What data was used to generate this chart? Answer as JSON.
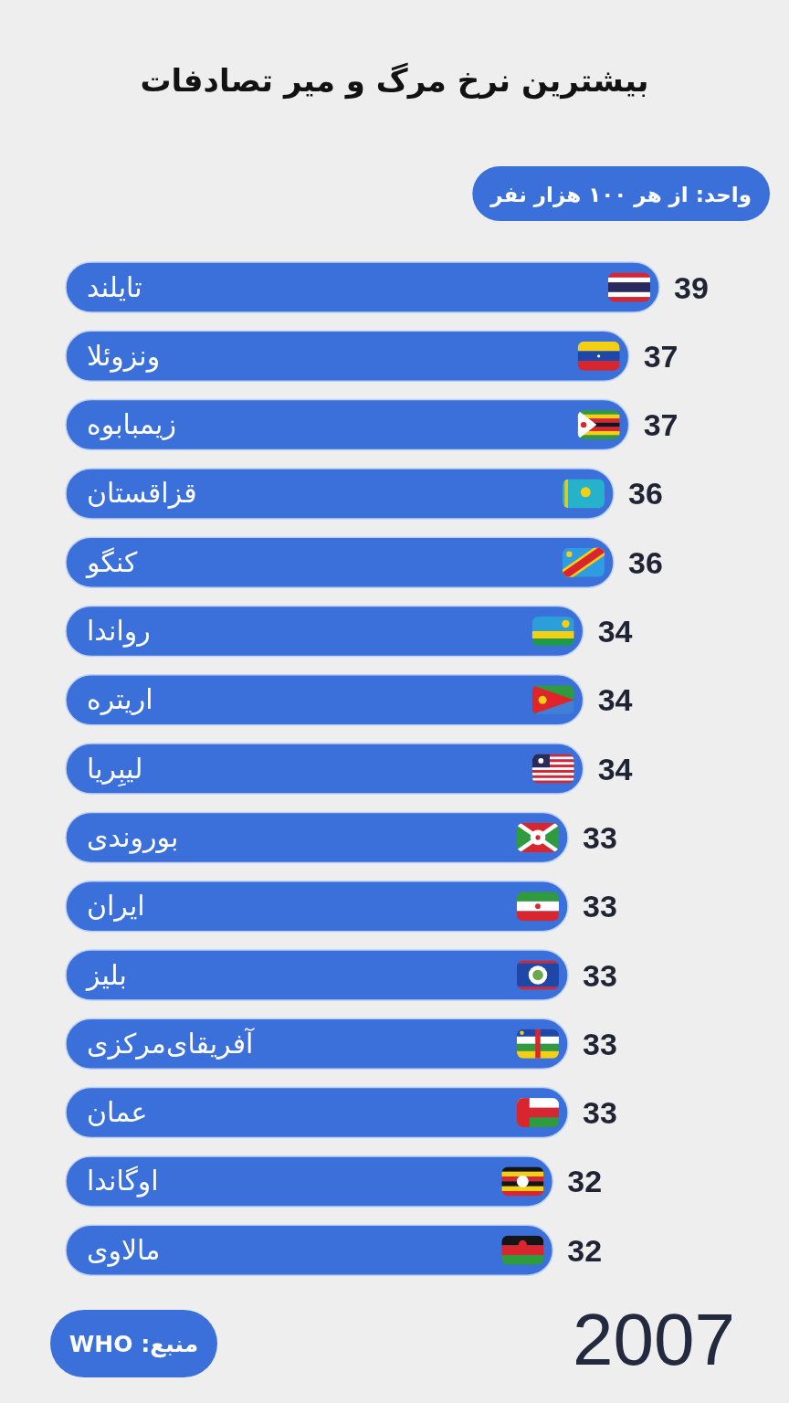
{
  "chart_data": {
    "type": "bar",
    "orientation": "horizontal",
    "title": "بیشترین نرخ مرگ و میر تصادفات",
    "subtitle": "واحد: از هر ۱۰۰ هزار نفر",
    "categories": [
      "تایلند",
      "ونزوئلا",
      "زیمبابوه",
      "قزاقستان",
      "کنگو",
      "رواندا",
      "اریتره",
      "لیبِریا",
      "بوروندی",
      "ایران",
      "بلیز",
      "آفریقای‌مرکزی",
      "عمان",
      "اوگاندا",
      "مالاوی"
    ],
    "values": [
      39,
      37,
      37,
      36,
      36,
      34,
      34,
      34,
      33,
      33,
      33,
      33,
      33,
      32,
      32
    ],
    "color": "#3b6fd9",
    "data_labels": true,
    "annotations": [
      "منبع: WHO",
      "2007"
    ]
  }
}
